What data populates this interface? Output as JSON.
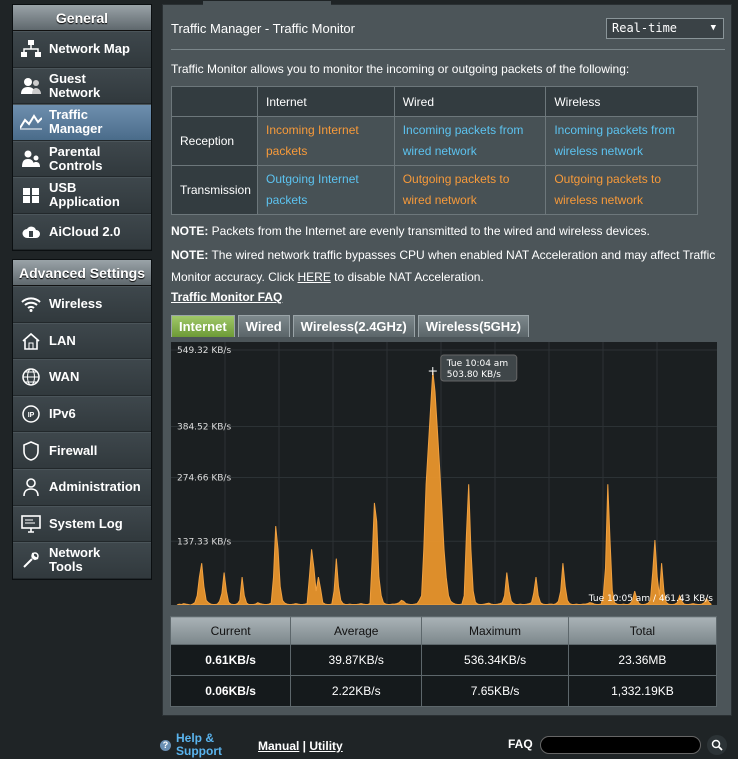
{
  "sidebar": {
    "general_header": "General",
    "general_items": [
      {
        "label": "Network Map",
        "icon": "network-map-icon"
      },
      {
        "label": "Guest Network",
        "icon": "guest-network-icon"
      },
      {
        "label": "Traffic Manager",
        "icon": "traffic-manager-icon",
        "active": true
      },
      {
        "label": "Parental Controls",
        "icon": "parental-controls-icon"
      },
      {
        "label": "USB Application",
        "icon": "usb-icon"
      },
      {
        "label": "AiCloud 2.0",
        "icon": "aicloud-icon"
      }
    ],
    "advanced_header": "Advanced Settings",
    "advanced_items": [
      {
        "label": "Wireless",
        "icon": "wifi-icon"
      },
      {
        "label": "LAN",
        "icon": "home-icon"
      },
      {
        "label": "WAN",
        "icon": "globe-icon"
      },
      {
        "label": "IPv6",
        "icon": "ipv6-icon"
      },
      {
        "label": "Firewall",
        "icon": "shield-icon"
      },
      {
        "label": "Administration",
        "icon": "admin-user-icon"
      },
      {
        "label": "System Log",
        "icon": "system-log-icon"
      },
      {
        "label": "Network Tools",
        "icon": "tools-icon"
      }
    ]
  },
  "main": {
    "title": "Traffic Manager - Traffic Monitor",
    "mode_select": "Real-time",
    "intro": "Traffic Monitor allows you to monitor the incoming or outgoing packets of the following:",
    "table": {
      "headers": [
        "",
        "Internet",
        "Wired",
        "Wireless"
      ],
      "rows": [
        {
          "label": "Reception",
          "cells": [
            {
              "text": "Incoming Internet packets",
              "color": "orange"
            },
            {
              "text": "Incoming packets from wired network",
              "color": "blue"
            },
            {
              "text": "Incoming packets from wireless network",
              "color": "blue"
            }
          ]
        },
        {
          "label": "Transmission",
          "cells": [
            {
              "text": "Outgoing Internet packets",
              "color": "blue"
            },
            {
              "text": "Outgoing packets to wired network",
              "color": "orange"
            },
            {
              "text": "Outgoing packets to wireless network",
              "color": "orange"
            }
          ]
        }
      ]
    },
    "note1_label": "NOTE:",
    "note1_text": " Packets from the Internet are evenly transmitted to the wired and wireless devices.",
    "note2_label": "NOTE:",
    "note2_text_a": " The wired network traffic bypasses CPU when enabled NAT Acceleration and may affect Traffic Monitor accuracy. Click ",
    "note2_link": "HERE",
    "note2_text_b": " to disable NAT Acceleration.",
    "faq_link": "Traffic Monitor FAQ",
    "tabs": [
      "Internet",
      "Wired",
      "Wireless(2.4GHz)",
      "Wireless(5GHz)"
    ],
    "active_tab": 0
  },
  "chart_data": {
    "type": "area",
    "ytick_labels": [
      "549.32 KB/s",
      "384.52 KB/s",
      "274.66 KB/s",
      "137.33 KB/s"
    ],
    "ytick_values": [
      549.32,
      384.52,
      274.66,
      137.33
    ],
    "ylim": [
      0,
      549.32
    ],
    "tooltip": {
      "time": "Tue 10:04 am",
      "value": "503.80 KB/s"
    },
    "status_label": "Tue 10:05 am / 461.43 KB/s",
    "color": "#e8952c",
    "grid": true,
    "values": [
      0,
      2,
      1,
      3,
      2,
      1,
      0,
      2,
      5,
      20,
      60,
      90,
      40,
      10,
      5,
      2,
      1,
      1,
      2,
      8,
      25,
      70,
      30,
      6,
      2,
      1,
      1,
      3,
      10,
      60,
      20,
      4,
      1,
      1,
      1,
      2,
      5,
      3,
      2,
      1,
      1,
      2,
      4,
      60,
      170,
      120,
      40,
      10,
      4,
      2,
      1,
      1,
      2,
      3,
      2,
      1,
      1,
      2,
      3,
      60,
      120,
      80,
      30,
      60,
      35,
      5,
      2,
      1,
      1,
      2,
      30,
      100,
      40,
      10,
      3,
      1,
      1,
      2,
      1,
      1,
      1,
      2,
      3,
      2,
      1,
      1,
      3,
      100,
      220,
      180,
      60,
      20,
      5,
      2,
      1,
      1,
      2,
      2,
      3,
      5,
      10,
      8,
      3,
      2,
      1,
      1,
      2,
      3,
      10,
      20,
      120,
      260,
      340,
      420,
      504,
      460,
      380,
      300,
      210,
      120,
      60,
      20,
      8,
      4,
      2,
      1,
      1,
      2,
      20,
      150,
      260,
      120,
      30,
      6,
      2,
      1,
      1,
      2,
      3,
      4,
      2,
      1,
      1,
      2,
      3,
      5,
      20,
      70,
      30,
      8,
      3,
      1,
      1,
      2,
      1,
      1,
      2,
      3,
      5,
      25,
      60,
      20,
      5,
      2,
      1,
      1,
      2,
      2,
      1,
      3,
      8,
      30,
      90,
      40,
      10,
      3,
      1,
      1,
      2,
      1,
      1,
      2,
      2,
      3,
      5,
      4,
      2,
      1,
      1,
      2,
      20,
      80,
      260,
      140,
      30,
      5,
      2,
      1,
      1,
      2,
      1,
      1,
      3,
      10,
      30,
      12,
      3,
      1,
      1,
      2,
      4,
      10,
      70,
      140,
      60,
      20,
      90,
      30,
      6,
      2,
      1,
      1,
      2,
      5,
      20,
      8,
      2,
      1,
      1,
      2,
      3,
      2,
      1,
      1,
      2,
      5,
      14,
      6,
      2
    ]
  },
  "stats": {
    "headers": [
      "Current",
      "Average",
      "Maximum",
      "Total"
    ],
    "rows": [
      [
        "0.61KB/s",
        "39.87KB/s",
        "536.34KB/s",
        "23.36MB"
      ],
      [
        "0.06KB/s",
        "2.22KB/s",
        "7.65KB/s",
        "1,332.19KB"
      ]
    ]
  },
  "footer": {
    "help_line1": "Help &",
    "help_line2": "Support",
    "manual": "Manual",
    "separator": " | ",
    "utility": "Utility",
    "faq_label": "FAQ"
  }
}
